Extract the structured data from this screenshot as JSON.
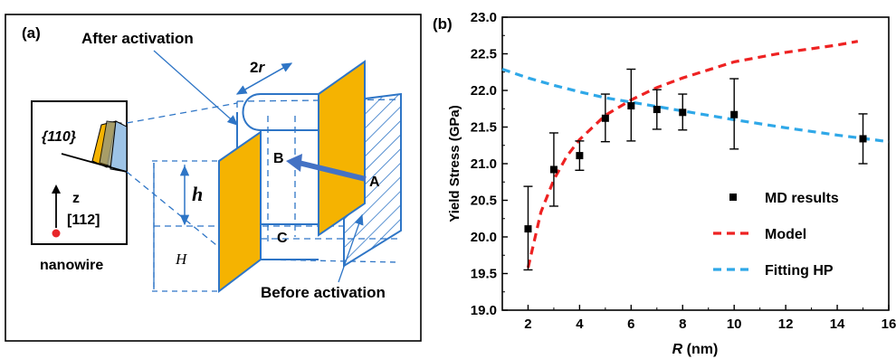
{
  "panel_a": {
    "panel_label": "(a)",
    "label_after": "After activation",
    "label_before": "Before activation",
    "label_2r_num": "2",
    "label_2r_var": "r",
    "label_h": "h",
    "label_H": "H",
    "label_A": "A",
    "label_B": "B",
    "label_C": "C",
    "inset_plane": "{110}",
    "inset_axis_z": "z",
    "inset_axis_dir": "[112]",
    "inset_caption": "nanowire",
    "colors": {
      "fill": "#f5b301",
      "line": "#2e75c6",
      "inset_blue": "#9dc3e6"
    }
  },
  "chart_data": {
    "type": "scatter",
    "panel_label": "(b)",
    "xlabel_var": "R",
    "xlabel_unit": " (nm)",
    "ylabel": "Yield Stress (GPa)",
    "xlim": [
      1,
      16
    ],
    "ylim": [
      19.0,
      23.0
    ],
    "xticks": [
      "2",
      "4",
      "6",
      "8",
      "10",
      "12",
      "14",
      "16"
    ],
    "yticks": [
      "19.0",
      "19.5",
      "20.0",
      "20.5",
      "21.0",
      "21.5",
      "22.0",
      "22.5",
      "23.0"
    ],
    "legend_position": "right",
    "series": [
      {
        "name": "MD results",
        "style": "markers-with-error-bars",
        "color": "#000000",
        "x": [
          2,
          3,
          4,
          5,
          6,
          7,
          8,
          10,
          15
        ],
        "y": [
          20.11,
          20.92,
          21.11,
          21.62,
          21.79,
          21.74,
          21.7,
          21.67,
          21.34
        ],
        "err_low": [
          19.55,
          20.42,
          20.91,
          21.3,
          21.31,
          21.47,
          21.46,
          21.2,
          21.0
        ],
        "err_high": [
          20.69,
          21.42,
          21.31,
          21.95,
          22.29,
          22.01,
          21.95,
          22.16,
          21.68
        ]
      },
      {
        "name": "Model",
        "style": "dashed-line",
        "color": "#ee2222",
        "x": [
          2,
          2.5,
          3,
          3.5,
          4,
          5,
          6,
          7,
          8,
          9,
          10,
          12,
          14,
          14.8
        ],
        "y": [
          19.58,
          20.34,
          20.78,
          21.1,
          21.33,
          21.66,
          21.87,
          22.04,
          22.17,
          22.28,
          22.39,
          22.52,
          22.62,
          22.67
        ]
      },
      {
        "name": "Fitting HP",
        "style": "dashed-line",
        "color": "#2fa8e8",
        "x": [
          1,
          2,
          3,
          4,
          5,
          6,
          7,
          8,
          10,
          12,
          14,
          16
        ],
        "y": [
          22.29,
          22.17,
          22.07,
          21.98,
          21.9,
          21.84,
          21.78,
          21.72,
          21.6,
          21.49,
          21.39,
          21.3
        ]
      }
    ]
  }
}
